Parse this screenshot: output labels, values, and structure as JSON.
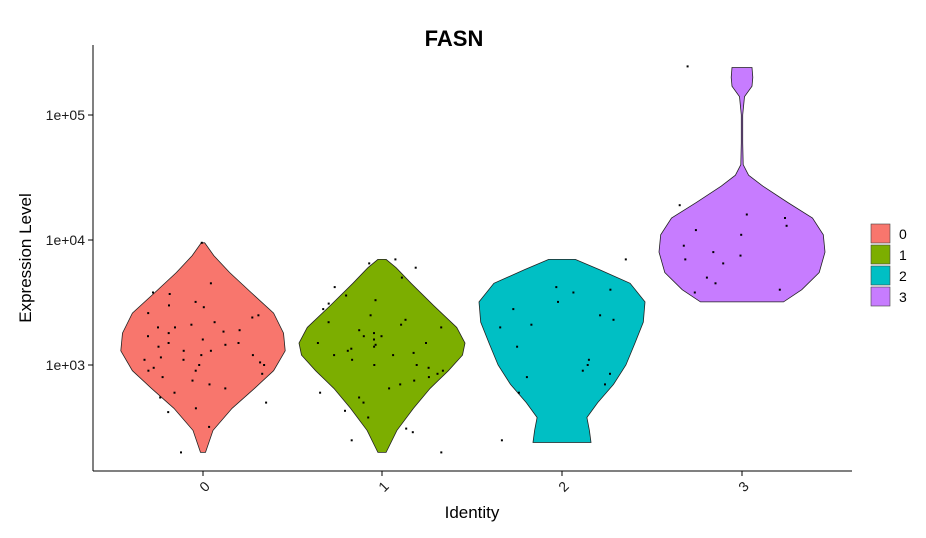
{
  "chart_data": {
    "type": "violin",
    "title": "FASN",
    "xlabel": "Identity",
    "ylabel": "Expression Level",
    "y_scale": "log10",
    "ylim": [
      150,
      300000
    ],
    "y_ticks": [
      {
        "value": 1000,
        "label": "1e+03"
      },
      {
        "value": 10000,
        "label": "1e+04"
      },
      {
        "value": 100000,
        "label": "1e+05"
      }
    ],
    "categories": [
      "0",
      "1",
      "2",
      "3"
    ],
    "grid": false,
    "legend": {
      "position": "right",
      "title": ""
    },
    "series": [
      {
        "name": "0",
        "color": "#F8766D",
        "min": 200,
        "max": 9500,
        "profile": [
          [
            200,
            0.03
          ],
          [
            300,
            0.12
          ],
          [
            450,
            0.35
          ],
          [
            650,
            0.62
          ],
          [
            900,
            0.85
          ],
          [
            1300,
            0.99
          ],
          [
            1800,
            0.97
          ],
          [
            2600,
            0.85
          ],
          [
            3800,
            0.58
          ],
          [
            5500,
            0.32
          ],
          [
            7500,
            0.13
          ],
          [
            9500,
            0.02
          ]
        ],
        "points": [
          9500,
          4500,
          3800,
          3700,
          3200,
          2900,
          2600,
          2400,
          2200,
          2100,
          2000,
          1900,
          1850,
          1700,
          1600,
          1500,
          1450,
          1400,
          1300,
          1200,
          1150,
          1100,
          1050,
          1000,
          950,
          900,
          850,
          800,
          750,
          700,
          650,
          600,
          550,
          500,
          450,
          420,
          320,
          200,
          2000,
          1500,
          1300,
          1100,
          900,
          2500,
          3000,
          1200,
          1000,
          1800
        ]
      },
      {
        "name": "1",
        "color": "#7CAE00",
        "min": 200,
        "max": 7000,
        "profile": [
          [
            200,
            0.05
          ],
          [
            300,
            0.18
          ],
          [
            450,
            0.38
          ],
          [
            650,
            0.58
          ],
          [
            900,
            0.8
          ],
          [
            1200,
            0.97
          ],
          [
            1500,
            1.0
          ],
          [
            2000,
            0.9
          ],
          [
            3000,
            0.62
          ],
          [
            4500,
            0.35
          ],
          [
            6000,
            0.17
          ],
          [
            7000,
            0.05
          ]
        ],
        "points": [
          7000,
          6500,
          6000,
          5000,
          4200,
          3600,
          3300,
          3100,
          2800,
          2500,
          2300,
          2100,
          2000,
          1900,
          1800,
          1700,
          1600,
          1500,
          1450,
          1400,
          1350,
          1300,
          1250,
          1200,
          1100,
          1000,
          950,
          900,
          850,
          800,
          750,
          700,
          650,
          600,
          550,
          500,
          430,
          380,
          310,
          290,
          250,
          200,
          1500,
          1700,
          1200,
          1000,
          2200
        ]
      },
      {
        "name": "2",
        "color": "#00BFC4",
        "min": 240,
        "max": 7000,
        "profile": [
          [
            240,
            0.35
          ],
          [
            300,
            0.33
          ],
          [
            380,
            0.3
          ],
          [
            500,
            0.43
          ],
          [
            700,
            0.62
          ],
          [
            1000,
            0.77
          ],
          [
            1500,
            0.88
          ],
          [
            2200,
            0.98
          ],
          [
            3200,
            1.0
          ],
          [
            4500,
            0.82
          ],
          [
            5800,
            0.45
          ],
          [
            7000,
            0.16
          ]
        ],
        "points": [
          7000,
          4200,
          4000,
          3800,
          3200,
          2800,
          2500,
          2300,
          2100,
          2000,
          1400,
          1100,
          1000,
          900,
          850,
          800,
          700,
          600,
          250
        ]
      },
      {
        "name": "3",
        "color": "#C77CFF",
        "min": 3200,
        "max": 240000,
        "profile": [
          [
            3200,
            0.5
          ],
          [
            4000,
            0.72
          ],
          [
            5500,
            0.93
          ],
          [
            8000,
            1.0
          ],
          [
            11000,
            0.98
          ],
          [
            15000,
            0.85
          ],
          [
            20000,
            0.55
          ],
          [
            27000,
            0.25
          ],
          [
            33000,
            0.08
          ],
          [
            40000,
            0.015
          ],
          [
            60000,
            0.008
          ],
          [
            100000,
            0.008
          ],
          [
            140000,
            0.03
          ],
          [
            170000,
            0.12
          ],
          [
            200000,
            0.13
          ],
          [
            240000,
            0.12
          ]
        ],
        "points": [
          245000,
          19000,
          16000,
          15000,
          13000,
          12000,
          11000,
          9000,
          8000,
          7500,
          7000,
          6500,
          5000,
          4500,
          4000,
          3800
        ]
      }
    ]
  }
}
